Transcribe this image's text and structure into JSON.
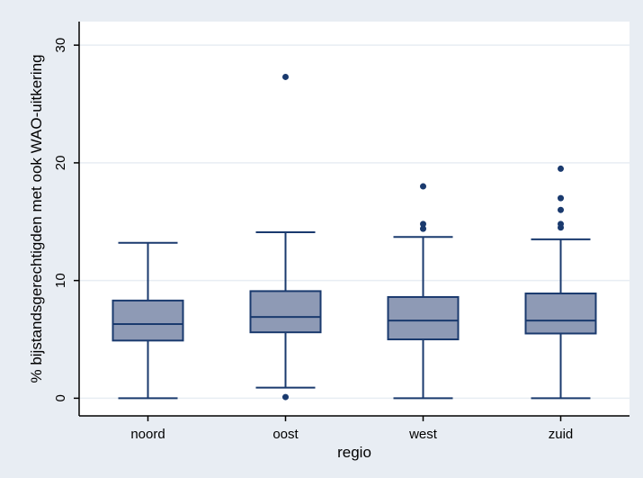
{
  "chart_data": {
    "type": "boxplot",
    "title": "",
    "xlabel": "regio",
    "ylabel": "% bijstandsgerechtigden met ook WAO-uitkering",
    "ylim": [
      -1.5,
      32
    ],
    "yticks": [
      0,
      10,
      20,
      30
    ],
    "ytick_labels": [
      "0",
      "10",
      "20",
      "30"
    ],
    "grid": "horizontal",
    "legend": "none",
    "categories": [
      "noord",
      "oost",
      "west",
      "zuid"
    ],
    "boxes": [
      {
        "category": "noord",
        "whisker_low": 0.0,
        "q1": 4.9,
        "median": 6.3,
        "q3": 8.3,
        "whisker_high": 13.2,
        "outliers": []
      },
      {
        "category": "oost",
        "whisker_low": 0.9,
        "q1": 5.6,
        "median": 6.9,
        "q3": 9.1,
        "whisker_high": 14.1,
        "outliers": [
          0.1,
          27.3
        ]
      },
      {
        "category": "west",
        "whisker_low": 0.0,
        "q1": 5.0,
        "median": 6.6,
        "q3": 8.6,
        "whisker_high": 13.7,
        "outliers": [
          14.4,
          14.8,
          18.0
        ]
      },
      {
        "category": "zuid",
        "whisker_low": 0.0,
        "q1": 5.5,
        "median": 6.6,
        "q3": 8.9,
        "whisker_high": 13.5,
        "outliers": [
          14.5,
          14.8,
          16.0,
          17.0,
          19.5
        ]
      }
    ],
    "colors": {
      "background": "#e8edf3",
      "plot_area": "#ffffff",
      "box_fill": "#8e9ab5",
      "box_line": "#1a3a6e",
      "outlier": "#1a3a6e",
      "grid": "#e8edf3",
      "axis": "#000000"
    }
  }
}
